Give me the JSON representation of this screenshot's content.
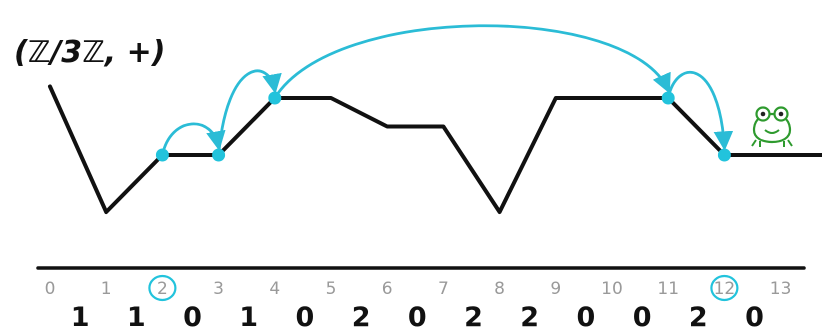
{
  "title": "(ℤ/3ℤ, +)",
  "sequence": {
    "indices": [
      "0",
      "1",
      "2",
      "3",
      "4",
      "5",
      "6",
      "7",
      "8",
      "9",
      "10",
      "11",
      "12",
      "13"
    ],
    "values": [
      "1",
      "1",
      "0",
      "1",
      "0",
      "2",
      "0",
      "2",
      "2",
      "0",
      "0",
      "2",
      "0"
    ],
    "circled_indices": [
      "2",
      "12"
    ]
  },
  "path_levels": [
    2,
    -1,
    1,
    1,
    3,
    3,
    2,
    2,
    -1,
    3,
    3,
    3,
    1,
    1
  ],
  "visited_points": [
    2,
    3,
    4,
    11,
    12
  ],
  "jumps": [
    {
      "from": 2,
      "to": 3
    },
    {
      "from": 3,
      "to": 4
    },
    {
      "from": 4,
      "to": 11
    },
    {
      "from": 11,
      "to": 12
    }
  ],
  "colors": {
    "path": "#111111",
    "jump": "#2bbcd6",
    "dot": "#22c3dc",
    "axis": "#111111",
    "index": "#9a9a9a",
    "frog": "#2e9a2e"
  },
  "icons": {
    "frog": "frog-icon"
  }
}
